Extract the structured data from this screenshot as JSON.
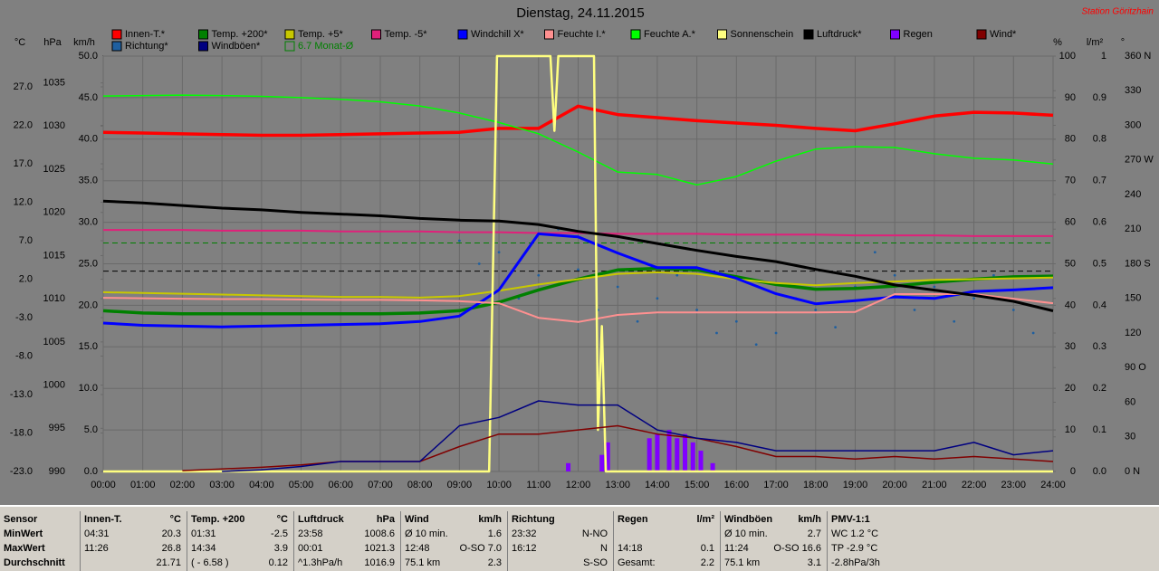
{
  "chart_data": {
    "type": "line",
    "title": "Dienstag, 24.11.2015",
    "subtitle": "Station Göritzhain",
    "xlim": [
      0,
      24
    ],
    "xticks": [
      {
        "value": 0,
        "label": "00:00"
      },
      {
        "value": 1,
        "label": "01:00"
      },
      {
        "value": 2,
        "label": "02:00"
      },
      {
        "value": 3,
        "label": "03:00"
      },
      {
        "value": 4,
        "label": "04:00"
      },
      {
        "value": 5,
        "label": "05:00"
      },
      {
        "value": 6,
        "label": "06:00"
      },
      {
        "value": 7,
        "label": "07:00"
      },
      {
        "value": 8,
        "label": "08:00"
      },
      {
        "value": 9,
        "label": "09:00"
      },
      {
        "value": 10,
        "label": "10:00"
      },
      {
        "value": 11,
        "label": "11:00"
      },
      {
        "value": 12,
        "label": "12:00"
      },
      {
        "value": 13,
        "label": "13:00"
      },
      {
        "value": 14,
        "label": "14:00"
      },
      {
        "value": 15,
        "label": "15:00"
      },
      {
        "value": 16,
        "label": "16:00"
      },
      {
        "value": 17,
        "label": "17:00"
      },
      {
        "value": 18,
        "label": "18:00"
      },
      {
        "value": 19,
        "label": "19:00"
      },
      {
        "value": 20,
        "label": "20:00"
      },
      {
        "value": 21,
        "label": "21:00"
      },
      {
        "value": 22,
        "label": "22:00"
      },
      {
        "value": 23,
        "label": "23:00"
      },
      {
        "value": 24,
        "label": "24:00"
      }
    ],
    "x": [
      0,
      1,
      2,
      3,
      4,
      5,
      6,
      7,
      8,
      9,
      10,
      11,
      12,
      13,
      14,
      15,
      16,
      17,
      18,
      19,
      20,
      21,
      22,
      23,
      24
    ],
    "grid": true,
    "axes": {
      "temp": {
        "label": "°C",
        "lim": [
          -23,
          31
        ],
        "ticks": [
          {
            "value": 27,
            "label": "27.0"
          },
          {
            "value": 22,
            "label": "22.0"
          },
          {
            "value": 17,
            "label": "17.0"
          },
          {
            "value": 12,
            "label": "12.0"
          },
          {
            "value": 7,
            "label": "7.0"
          },
          {
            "value": 2,
            "label": "2.0"
          },
          {
            "value": -3,
            "label": "-3.0"
          },
          {
            "value": -8,
            "label": "-8.0"
          },
          {
            "value": -13,
            "label": "-13.0"
          },
          {
            "value": -18,
            "label": "-18.0"
          },
          {
            "value": -23,
            "label": "-23.0"
          }
        ]
      },
      "hpa": {
        "label": "hPa",
        "lim": [
          990,
          1038.1
        ],
        "ticks": [
          1035,
          1030,
          1025,
          1020,
          1015,
          1010,
          1005,
          1000,
          995,
          990
        ]
      },
      "kmh": {
        "label": "km/h",
        "lim": [
          0,
          50
        ],
        "ticks": [
          {
            "value": 50,
            "label": "50.0"
          },
          {
            "value": 45,
            "label": "45.0"
          },
          {
            "value": 40,
            "label": "40.0"
          },
          {
            "value": 35,
            "label": "35.0"
          },
          {
            "value": 30,
            "label": "30.0"
          },
          {
            "value": 25,
            "label": "25.0"
          },
          {
            "value": 20,
            "label": "20.0"
          },
          {
            "value": 15,
            "label": "15.0"
          },
          {
            "value": 10,
            "label": "10.0"
          },
          {
            "value": 5,
            "label": "5.0"
          },
          {
            "value": 0,
            "label": "0.0"
          }
        ]
      },
      "pct": {
        "label": "%",
        "lim": [
          0,
          100
        ],
        "ticks": [
          100,
          90,
          80,
          70,
          60,
          50,
          40,
          30,
          20,
          10,
          0
        ]
      },
      "rain": {
        "label": "l/m²",
        "lim": [
          0,
          1
        ],
        "ticks": [
          1,
          0.9,
          0.8,
          0.7,
          0.6,
          0.5,
          0.4,
          0.3,
          0.2,
          0.1,
          {
            "value": 0,
            "label": "0.0"
          }
        ]
      },
      "deg": {
        "label": "°",
        "lim": [
          0,
          360
        ],
        "ticks": [
          {
            "value": 360,
            "label": "360 N"
          },
          330,
          300,
          {
            "value": 270,
            "label": "270 W"
          },
          240,
          210,
          {
            "value": 180,
            "label": "180 S"
          },
          150,
          120,
          {
            "value": 90,
            "label": "90 O"
          },
          60,
          30,
          {
            "value": 0,
            "label": "0 N"
          }
        ]
      }
    },
    "series": [
      {
        "name": "Innen-T.*",
        "type": "line",
        "axis": "temp",
        "color": "#ff0000",
        "width": 3.5,
        "values": [
          21.1,
          21.0,
          20.9,
          20.8,
          20.7,
          20.7,
          20.8,
          20.9,
          21.0,
          21.1,
          21.6,
          21.6,
          24.5,
          23.4,
          23.0,
          22.6,
          22.3,
          22.0,
          21.6,
          21.3,
          22.2,
          23.2,
          23.7,
          23.6,
          23.3
        ]
      },
      {
        "name": "Temp. +200*",
        "type": "line",
        "axis": "temp",
        "color": "#008000",
        "width": 3.5,
        "values": [
          -2.1,
          -2.4,
          -2.5,
          -2.5,
          -2.5,
          -2.5,
          -2.5,
          -2.5,
          -2.4,
          -2.1,
          -1.0,
          0.6,
          2.0,
          3.2,
          3.4,
          3.2,
          2.3,
          1.3,
          0.7,
          0.8,
          1.1,
          1.6,
          2.0,
          2.3,
          2.4
        ]
      },
      {
        "name": "Temp. +5*",
        "type": "line",
        "axis": "temp",
        "color": "#c8c800",
        "width": 2,
        "values": [
          0.3,
          0.2,
          0.1,
          0.0,
          -0.1,
          -0.2,
          -0.3,
          -0.3,
          -0.4,
          -0.2,
          0.5,
          1.3,
          2.0,
          2.7,
          2.9,
          2.7,
          2.0,
          1.5,
          1.2,
          1.5,
          1.7,
          1.9,
          2.0,
          2.1,
          2.2
        ]
      },
      {
        "name": "Temp. -5*",
        "type": "line",
        "axis": "temp",
        "color": "#e0207a",
        "width": 2,
        "values": [
          8.4,
          8.4,
          8.4,
          8.3,
          8.3,
          8.3,
          8.2,
          8.2,
          8.2,
          8.1,
          8.1,
          8.0,
          8.0,
          7.9,
          7.9,
          7.9,
          7.8,
          7.8,
          7.8,
          7.7,
          7.7,
          7.7,
          7.6,
          7.6,
          7.6
        ]
      },
      {
        "name": "Windchill X*",
        "type": "line",
        "axis": "temp",
        "color": "#0000ff",
        "width": 3,
        "values": [
          -3.7,
          -4.0,
          -4.1,
          -4.2,
          -4.1,
          -4.0,
          -3.9,
          -3.8,
          -3.5,
          -2.8,
          0.6,
          7.9,
          7.5,
          5.4,
          3.5,
          3.5,
          2.1,
          0.1,
          -1.2,
          -0.8,
          -0.3,
          -0.5,
          0.4,
          0.6,
          0.9
        ]
      },
      {
        "name": "Feuchte I.*",
        "type": "line",
        "axis": "pct",
        "color": "#ff9090",
        "width": 2,
        "values": [
          41.8,
          41.7,
          41.6,
          41.5,
          41.5,
          41.4,
          41.3,
          41.3,
          41.2,
          41.0,
          40.5,
          37.0,
          36.0,
          37.7,
          38.3,
          38.3,
          38.3,
          38.3,
          38.3,
          38.4,
          42.7,
          42.7,
          42.7,
          41.6,
          40.5
        ]
      },
      {
        "name": "Feuchte A.*",
        "type": "line",
        "axis": "pct",
        "color": "#00ff00",
        "width": 1.5,
        "values": [
          90.4,
          90.5,
          90.6,
          90.5,
          90.3,
          90.0,
          89.6,
          89.0,
          88.0,
          86.3,
          84.0,
          81.3,
          76.9,
          72.1,
          71.5,
          69.0,
          71.0,
          74.7,
          77.6,
          78.2,
          78.0,
          76.5,
          75.4,
          75.0,
          74.0
        ]
      },
      {
        "name": "Sonnenschein",
        "type": "line",
        "axis": "pct",
        "color": "#ffff80",
        "width": 2.5,
        "x": [
          0,
          9.75,
          9.95,
          10.1,
          11.3,
          11.4,
          11.5,
          11.6,
          12.4,
          12.5,
          12.6,
          12.7,
          12.8,
          24
        ],
        "values": [
          0,
          0,
          100,
          100,
          100,
          82,
          100,
          100,
          100,
          10,
          35,
          0,
          0,
          0
        ]
      },
      {
        "name": "Luftdruck*",
        "type": "line",
        "axis": "hpa",
        "color": "#000000",
        "width": 3,
        "values": [
          1021.3,
          1021.1,
          1020.8,
          1020.5,
          1020.3,
          1020.0,
          1019.8,
          1019.6,
          1019.3,
          1019.1,
          1019.0,
          1018.6,
          1017.8,
          1017.2,
          1016.4,
          1015.6,
          1014.9,
          1014.3,
          1013.4,
          1012.6,
          1011.6,
          1011.0,
          1010.4,
          1009.7,
          1008.6
        ]
      },
      {
        "name": "Regen",
        "type": "bar",
        "axis": "rain",
        "color": "#8000ff",
        "x": [
          11.75,
          12.6,
          12.75,
          13.8,
          14.0,
          14.3,
          14.5,
          14.7,
          14.9,
          15.1,
          15.4
        ],
        "values": [
          0.02,
          0.04,
          0.07,
          0.08,
          0.09,
          0.1,
          0.08,
          0.09,
          0.07,
          0.05,
          0.02
        ]
      },
      {
        "name": "Wind*",
        "type": "line",
        "axis": "kmh",
        "color": "#800000",
        "width": 1.5,
        "values": [
          null,
          null,
          0.1,
          0.3,
          0.5,
          0.8,
          1.2,
          1.2,
          1.2,
          3.0,
          4.5,
          4.5,
          5.0,
          5.5,
          4.5,
          4.0,
          3.0,
          1.8,
          1.8,
          1.5,
          1.8,
          1.5,
          1.8,
          1.5,
          1.2
        ]
      },
      {
        "name": "Richtung*",
        "type": "scatter",
        "axis": "deg",
        "color": "#1f5f9f",
        "x": [
          9,
          9.5,
          10,
          10.5,
          11,
          11.5,
          12,
          12.5,
          13,
          13.5,
          14,
          14.5,
          15,
          15.5,
          16,
          16.5,
          17,
          17.5,
          18,
          18.5,
          19,
          19.5,
          20,
          20.5,
          21,
          21.5,
          22,
          22.5,
          23,
          23.5
        ],
        "values": [
          200,
          180,
          190,
          150,
          170,
          210,
          175,
          140,
          160,
          130,
          150,
          170,
          140,
          120,
          130,
          110,
          120,
          150,
          140,
          125,
          160,
          190,
          170,
          140,
          160,
          130,
          150,
          170,
          140,
          120
        ]
      },
      {
        "name": "Windböen*",
        "type": "line",
        "axis": "kmh",
        "color": "#000080",
        "width": 1.5,
        "values": [
          null,
          null,
          null,
          0.0,
          0.2,
          0.6,
          1.2,
          1.2,
          1.2,
          5.5,
          6.5,
          8.5,
          8.0,
          8.0,
          5.0,
          4.0,
          3.5,
          2.5,
          2.5,
          2.5,
          2.5,
          2.5,
          3.5,
          2.0,
          2.5
        ]
      },
      {
        "name": "6.7 Monat-Ø",
        "type": "hline",
        "axis": "temp",
        "color": "#008000",
        "dashed": true,
        "value": 6.7
      },
      {
        "type": "hline",
        "axis": "hpa",
        "color": "#000000",
        "dashed": true,
        "value": 1013.2
      }
    ]
  },
  "summary": {
    "columns": [
      {
        "header": {
          "left": "Sensor"
        },
        "rows": [
          {
            "left": "MinWert"
          },
          {
            "left": "MaxWert"
          },
          {
            "left": "Durchschnitt"
          }
        ]
      },
      {
        "header": {
          "left": "Innen-T.",
          "right": "°C"
        },
        "rows": [
          {
            "left": "04:31",
            "right": "20.3"
          },
          {
            "left": "11:26",
            "right": "26.8"
          },
          {
            "right": "21.71"
          }
        ]
      },
      {
        "header": {
          "left": "Temp. +200",
          "right": "°C"
        },
        "rows": [
          {
            "left": "01:31",
            "right": "-2.5"
          },
          {
            "left": "14:34",
            "right": "3.9"
          },
          {
            "left": "( - 6.58 )",
            "right": "0.12"
          }
        ]
      },
      {
        "header": {
          "left": "Luftdruck",
          "right": "hPa"
        },
        "rows": [
          {
            "left": "23:58",
            "right": "1008.6"
          },
          {
            "left": "00:01",
            "right": "1021.3"
          },
          {
            "left": "^1.3hPa/h",
            "right": "1016.9"
          }
        ]
      },
      {
        "header": {
          "left": "Wind",
          "right": "km/h"
        },
        "rows": [
          {
            "left": "Ø 10 min.",
            "right": "1.6"
          },
          {
            "left": "12:48",
            "right": "O-SO 7.0"
          },
          {
            "left": "75.1 km",
            "right": "2.3"
          }
        ]
      },
      {
        "header": {
          "left": "Richtung"
        },
        "rows": [
          {
            "left": "23:32",
            "right": "N-NO"
          },
          {
            "left": "16:12",
            "right": "N"
          },
          {
            "right": "S-SO"
          }
        ]
      },
      {
        "header": {
          "left": "Regen",
          "right": "l/m²"
        },
        "rows": [
          {},
          {
            "left": "14:18",
            "right": "0.1"
          },
          {
            "left": "Gesamt:",
            "right": "2.2"
          }
        ]
      },
      {
        "header": {
          "left": "Windböen",
          "right": "km/h"
        },
        "rows": [
          {
            "left": "Ø 10 min.",
            "right": "2.7"
          },
          {
            "left": "11:24",
            "right": "O-SO 16.6"
          },
          {
            "left": "75.1 km",
            "right": "3.1"
          }
        ]
      },
      {
        "header": {
          "left": "PMV-1:1"
        },
        "rows": [
          {
            "left": "WC 1.2 °C"
          },
          {
            "left": "TP -2.9 °C"
          },
          {
            "left": "-2.8hPa/3h"
          }
        ]
      }
    ]
  }
}
